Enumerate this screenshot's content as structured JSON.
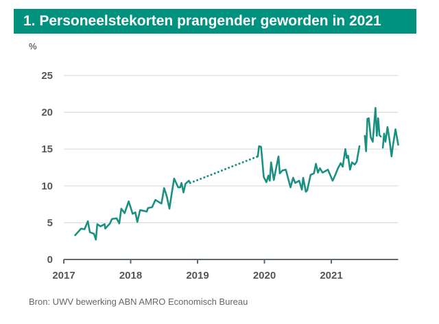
{
  "chart_data": {
    "type": "line",
    "title": "1. Personeelstekorten prangender geworden in 2021",
    "ylabel": "%",
    "xlabel": "",
    "source": "Bron: UWV bewerking ABN AMRO Economisch Bureau",
    "xlim": [
      2017,
      2022
    ],
    "ylim": [
      0,
      25
    ],
    "yticks": [
      0,
      5,
      10,
      15,
      20,
      25
    ],
    "xticks": [
      2017,
      2018,
      2019,
      2020,
      2021
    ],
    "grid": true,
    "line_color": "#1a9080",
    "segments": [
      {
        "style": "solid",
        "points": [
          [
            2017.17,
            3.3
          ],
          [
            2017.21,
            3.7
          ],
          [
            2017.26,
            4.2
          ],
          [
            2017.31,
            4.1
          ],
          [
            2017.36,
            5.2
          ],
          [
            2017.39,
            3.7
          ],
          [
            2017.45,
            3.5
          ],
          [
            2017.48,
            2.7
          ],
          [
            2017.5,
            4.8
          ],
          [
            2017.55,
            4.5
          ],
          [
            2017.61,
            4.8
          ],
          [
            2017.62,
            4.2
          ],
          [
            2017.69,
            4.9
          ],
          [
            2017.72,
            5.5
          ],
          [
            2017.79,
            5.6
          ],
          [
            2017.83,
            4.9
          ],
          [
            2017.86,
            6.9
          ],
          [
            2017.91,
            6.3
          ],
          [
            2017.97,
            7.9
          ],
          [
            2018.03,
            6.2
          ],
          [
            2018.07,
            6.4
          ],
          [
            2018.1,
            5.1
          ],
          [
            2018.14,
            6.7
          ],
          [
            2018.2,
            6.6
          ],
          [
            2018.24,
            6.5
          ],
          [
            2018.26,
            7.0
          ],
          [
            2018.32,
            7.1
          ],
          [
            2018.37,
            8.1
          ],
          [
            2018.44,
            7.7
          ],
          [
            2018.46,
            7.6
          ],
          [
            2018.5,
            9.7
          ],
          [
            2018.54,
            8.6
          ],
          [
            2018.58,
            6.9
          ],
          [
            2018.62,
            9.3
          ],
          [
            2018.65,
            11.0
          ],
          [
            2018.71,
            9.8
          ],
          [
            2018.74,
            9.8
          ],
          [
            2018.76,
            10.4
          ],
          [
            2018.79,
            9.1
          ],
          [
            2018.82,
            10.3
          ],
          [
            2018.87,
            10.7
          ],
          [
            2018.89,
            10.4
          ]
        ]
      },
      {
        "style": "dotted",
        "points": [
          [
            2018.89,
            10.4
          ],
          [
            2019.9,
            14.0
          ]
        ]
      },
      {
        "style": "solid",
        "points": [
          [
            2019.9,
            14.0
          ],
          [
            2019.92,
            15.4
          ],
          [
            2019.95,
            15.3
          ],
          [
            2019.99,
            11.2
          ],
          [
            2020.03,
            10.5
          ],
          [
            2020.06,
            11.4
          ],
          [
            2020.08,
            10.7
          ],
          [
            2020.1,
            13.2
          ],
          [
            2020.14,
            10.8
          ],
          [
            2020.17,
            12.2
          ],
          [
            2020.21,
            14.0
          ],
          [
            2020.23,
            11.7
          ],
          [
            2020.27,
            12.1
          ],
          [
            2020.32,
            12.2
          ],
          [
            2020.39,
            9.8
          ],
          [
            2020.43,
            11.1
          ],
          [
            2020.46,
            10.4
          ],
          [
            2020.52,
            10.7
          ],
          [
            2020.56,
            9.5
          ],
          [
            2020.58,
            11.1
          ],
          [
            2020.62,
            9.2
          ],
          [
            2020.64,
            9.4
          ],
          [
            2020.69,
            11.5
          ],
          [
            2020.74,
            11.7
          ],
          [
            2020.77,
            13.0
          ],
          [
            2020.8,
            11.8
          ],
          [
            2020.83,
            12.4
          ],
          [
            2020.87,
            11.8
          ],
          [
            2020.95,
            12.2
          ],
          [
            2021.02,
            10.7
          ],
          [
            2021.05,
            11.3
          ],
          [
            2021.1,
            12.4
          ],
          [
            2021.14,
            13.1
          ],
          [
            2021.17,
            12.6
          ],
          [
            2021.21,
            15.0
          ],
          [
            2021.23,
            13.8
          ],
          [
            2021.25,
            14.1
          ],
          [
            2021.28,
            12.2
          ],
          [
            2021.31,
            13.2
          ],
          [
            2021.35,
            12.9
          ],
          [
            2021.38,
            13.3
          ],
          [
            2021.42,
            15.4
          ]
        ]
      },
      {
        "style": "solid",
        "points": [
          [
            2021.5,
            16.8
          ],
          [
            2021.52,
            14.7
          ],
          [
            2021.54,
            19.1
          ],
          [
            2021.56,
            19.2
          ],
          [
            2021.59,
            16.6
          ],
          [
            2021.62,
            16.0
          ],
          [
            2021.66,
            20.6
          ],
          [
            2021.68,
            16.8
          ],
          [
            2021.7,
            19.2
          ],
          [
            2021.72,
            16.9
          ],
          [
            2021.74,
            16.7
          ]
        ]
      },
      {
        "style": "solid",
        "points": [
          [
            2021.77,
            15.2
          ],
          [
            2021.79,
            17.1
          ],
          [
            2021.81,
            16.0
          ],
          [
            2021.84,
            18.0
          ],
          [
            2021.87,
            16.3
          ],
          [
            2021.9,
            14.0
          ],
          [
            2021.92,
            15.4
          ],
          [
            2021.96,
            17.7
          ],
          [
            2022.0,
            15.6
          ]
        ]
      }
    ]
  }
}
